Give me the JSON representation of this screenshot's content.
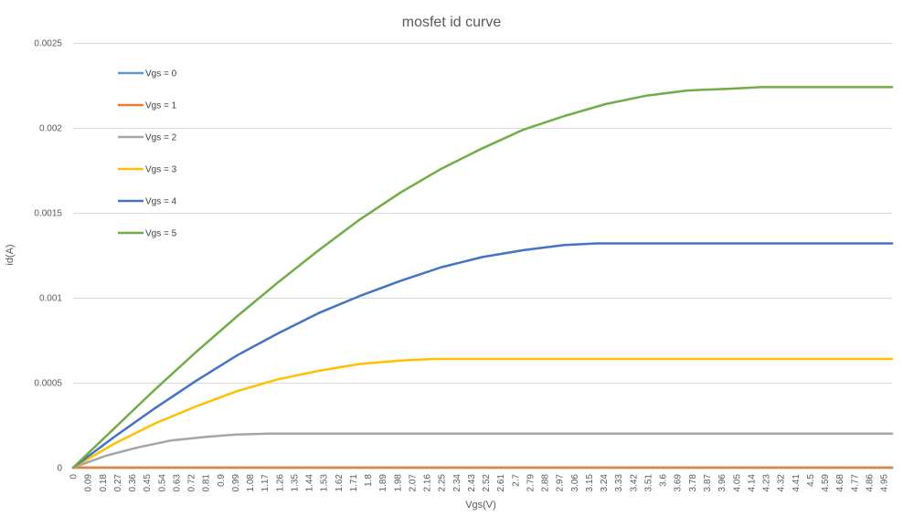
{
  "chart_data": {
    "type": "line",
    "title": "mosfet id curve",
    "xlabel": "Vgs(V)",
    "ylabel": "id(A)",
    "ylim": [
      0,
      0.0025
    ],
    "yticks": [
      "0",
      "0.0005",
      "0.001",
      "0.0015",
      "0.002",
      "0.0025"
    ],
    "xtick_labels": [
      "0",
      "0.09",
      "0.18",
      "0.27",
      "0.36",
      "0.45",
      "0.54",
      "0.63",
      "0.72",
      "0.81",
      "0.9",
      "0.99",
      "1.08",
      "1.17",
      "1.26",
      "1.35",
      "1.44",
      "1.53",
      "1.62",
      "1.71",
      "1.8",
      "1.89",
      "1.98",
      "2.07",
      "2.16",
      "2.25",
      "2.34",
      "2.43",
      "2.52",
      "2.61",
      "2.7",
      "2.79",
      "2.88",
      "2.97",
      "3.06",
      "3.15",
      "3.24",
      "3.33",
      "3.42",
      "3.51",
      "3.6",
      "3.69",
      "3.78",
      "3.87",
      "3.96",
      "4.05",
      "4.14",
      "4.23",
      "4.32",
      "4.41",
      "4.5",
      "4.59",
      "4.68",
      "4.77",
      "4.86",
      "4.95"
    ],
    "grid": true,
    "legend_position": "top-left",
    "series": [
      {
        "name": "Vgs = 0",
        "color": "#5B9BD5",
        "points": [
          [
            0,
            0
          ],
          [
            5,
            0
          ]
        ]
      },
      {
        "name": "Vgs = 1",
        "color": "#ED7D31",
        "points": [
          [
            0,
            0
          ],
          [
            5,
            0
          ]
        ]
      },
      {
        "name": "Vgs = 2",
        "color": "#A5A5A5",
        "points": [
          [
            0,
            0
          ],
          [
            0.2,
            7e-05
          ],
          [
            0.4,
            0.00012
          ],
          [
            0.6,
            0.00016
          ],
          [
            0.8,
            0.00018
          ],
          [
            1.0,
            0.000195
          ],
          [
            1.2,
            0.0002
          ],
          [
            5,
            0.0002
          ]
        ]
      },
      {
        "name": "Vgs = 3",
        "color": "#FFC000",
        "points": [
          [
            0,
            0
          ],
          [
            0.25,
            0.00014
          ],
          [
            0.5,
            0.00026
          ],
          [
            0.75,
            0.00036
          ],
          [
            1.0,
            0.00045
          ],
          [
            1.25,
            0.00052
          ],
          [
            1.5,
            0.00057
          ],
          [
            1.75,
            0.00061
          ],
          [
            2.0,
            0.00063
          ],
          [
            2.2,
            0.00064
          ],
          [
            5,
            0.00064
          ]
        ]
      },
      {
        "name": "Vgs = 4",
        "color": "#4472C4",
        "points": [
          [
            0,
            0
          ],
          [
            0.25,
            0.00018
          ],
          [
            0.5,
            0.00035
          ],
          [
            0.75,
            0.00051
          ],
          [
            1.0,
            0.00066
          ],
          [
            1.25,
            0.00079
          ],
          [
            1.5,
            0.00091
          ],
          [
            1.75,
            0.00101
          ],
          [
            2.0,
            0.0011
          ],
          [
            2.25,
            0.00118
          ],
          [
            2.5,
            0.00124
          ],
          [
            2.75,
            0.00128
          ],
          [
            3.0,
            0.00131
          ],
          [
            3.2,
            0.00132
          ],
          [
            5,
            0.00132
          ]
        ]
      },
      {
        "name": "Vgs = 5",
        "color": "#70AD47",
        "points": [
          [
            0,
            0
          ],
          [
            0.25,
            0.00023
          ],
          [
            0.5,
            0.00046
          ],
          [
            0.75,
            0.00068
          ],
          [
            1.0,
            0.00089
          ],
          [
            1.25,
            0.00109
          ],
          [
            1.5,
            0.00128
          ],
          [
            1.75,
            0.00146
          ],
          [
            2.0,
            0.00162
          ],
          [
            2.25,
            0.00176
          ],
          [
            2.5,
            0.00188
          ],
          [
            2.75,
            0.00199
          ],
          [
            3.0,
            0.00207
          ],
          [
            3.25,
            0.00214
          ],
          [
            3.5,
            0.00219
          ],
          [
            3.75,
            0.00222
          ],
          [
            4.0,
            0.00223
          ],
          [
            4.2,
            0.00224
          ],
          [
            5,
            0.00224
          ]
        ]
      }
    ]
  }
}
